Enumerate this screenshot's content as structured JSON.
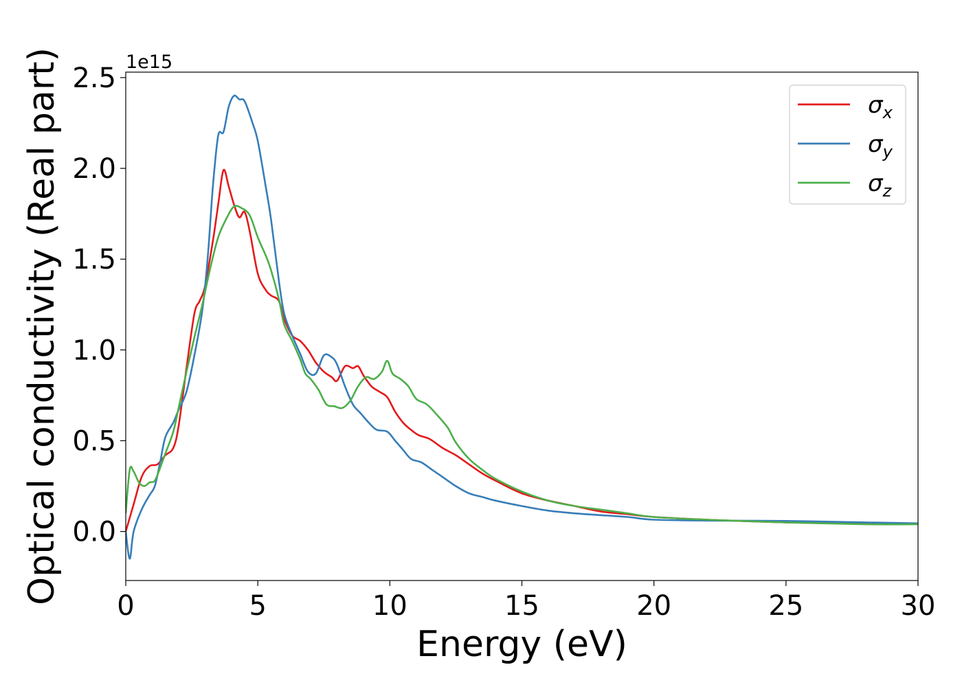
{
  "chart_data": {
    "type": "line",
    "title": "",
    "xlabel": "Energy (eV)",
    "ylabel": "Optical conductivity (Real part)",
    "y_offset_label": "1e15",
    "xlim": [
      0,
      30
    ],
    "ylim": [
      -0.27,
      2.53
    ],
    "x_ticks": [
      0,
      5,
      10,
      15,
      20,
      25,
      30
    ],
    "y_ticks": [
      0.0,
      0.5,
      1.0,
      1.5,
      2.0,
      2.5
    ],
    "x_tick_labels": [
      "0",
      "5",
      "10",
      "15",
      "20",
      "25",
      "30"
    ],
    "y_tick_labels": [
      "0.0",
      "0.5",
      "1.0",
      "1.5",
      "2.0",
      "2.5"
    ],
    "grid": false,
    "legend_position": "top-right",
    "series": [
      {
        "name": "σx",
        "color": "#e41a1c",
        "points": [
          [
            0,
            0.0
          ],
          [
            0.3,
            0.15
          ],
          [
            0.6,
            0.3
          ],
          [
            0.9,
            0.36
          ],
          [
            1.2,
            0.37
          ],
          [
            1.5,
            0.42
          ],
          [
            1.8,
            0.46
          ],
          [
            2.0,
            0.58
          ],
          [
            2.3,
            0.9
          ],
          [
            2.6,
            1.2
          ],
          [
            2.8,
            1.27
          ],
          [
            3.0,
            1.35
          ],
          [
            3.3,
            1.6
          ],
          [
            3.5,
            1.8
          ],
          [
            3.7,
            1.99
          ],
          [
            3.9,
            1.9
          ],
          [
            4.1,
            1.8
          ],
          [
            4.3,
            1.73
          ],
          [
            4.5,
            1.76
          ],
          [
            4.7,
            1.65
          ],
          [
            5.0,
            1.42
          ],
          [
            5.3,
            1.33
          ],
          [
            5.5,
            1.3
          ],
          [
            5.8,
            1.27
          ],
          [
            6.0,
            1.17
          ],
          [
            6.3,
            1.08
          ],
          [
            6.6,
            1.05
          ],
          [
            6.9,
            1.0
          ],
          [
            7.2,
            0.93
          ],
          [
            7.5,
            0.88
          ],
          [
            7.8,
            0.85
          ],
          [
            8.0,
            0.83
          ],
          [
            8.3,
            0.91
          ],
          [
            8.6,
            0.9
          ],
          [
            8.8,
            0.91
          ],
          [
            9.0,
            0.86
          ],
          [
            9.3,
            0.8
          ],
          [
            9.6,
            0.77
          ],
          [
            9.9,
            0.74
          ],
          [
            10.2,
            0.66
          ],
          [
            10.5,
            0.6
          ],
          [
            10.8,
            0.56
          ],
          [
            11.1,
            0.53
          ],
          [
            11.5,
            0.51
          ],
          [
            12.0,
            0.46
          ],
          [
            12.5,
            0.42
          ],
          [
            13.0,
            0.37
          ],
          [
            13.5,
            0.32
          ],
          [
            14.0,
            0.28
          ],
          [
            15.0,
            0.21
          ],
          [
            16.0,
            0.17
          ],
          [
            17.0,
            0.14
          ],
          [
            18.0,
            0.11
          ],
          [
            19.0,
            0.095
          ],
          [
            20.0,
            0.08
          ],
          [
            22.0,
            0.065
          ],
          [
            25.0,
            0.05
          ],
          [
            28.0,
            0.045
          ],
          [
            30.0,
            0.04
          ]
        ]
      },
      {
        "name": "σy",
        "color": "#377eb8",
        "points": [
          [
            0,
            0.0
          ],
          [
            0.15,
            -0.15
          ],
          [
            0.3,
            0.0
          ],
          [
            0.6,
            0.12
          ],
          [
            0.9,
            0.2
          ],
          [
            1.1,
            0.25
          ],
          [
            1.3,
            0.38
          ],
          [
            1.5,
            0.52
          ],
          [
            1.8,
            0.6
          ],
          [
            2.0,
            0.67
          ],
          [
            2.3,
            0.77
          ],
          [
            2.6,
            0.97
          ],
          [
            2.9,
            1.22
          ],
          [
            3.1,
            1.5
          ],
          [
            3.3,
            1.9
          ],
          [
            3.5,
            2.18
          ],
          [
            3.7,
            2.2
          ],
          [
            3.9,
            2.34
          ],
          [
            4.1,
            2.4
          ],
          [
            4.3,
            2.38
          ],
          [
            4.5,
            2.37
          ],
          [
            4.8,
            2.25
          ],
          [
            5.0,
            2.15
          ],
          [
            5.3,
            1.9
          ],
          [
            5.5,
            1.72
          ],
          [
            5.8,
            1.38
          ],
          [
            6.0,
            1.2
          ],
          [
            6.3,
            1.08
          ],
          [
            6.6,
            0.98
          ],
          [
            6.9,
            0.88
          ],
          [
            7.2,
            0.87
          ],
          [
            7.5,
            0.97
          ],
          [
            7.8,
            0.96
          ],
          [
            8.0,
            0.92
          ],
          [
            8.3,
            0.8
          ],
          [
            8.6,
            0.7
          ],
          [
            8.9,
            0.65
          ],
          [
            9.2,
            0.6
          ],
          [
            9.5,
            0.56
          ],
          [
            9.9,
            0.55
          ],
          [
            10.2,
            0.5
          ],
          [
            10.5,
            0.45
          ],
          [
            10.8,
            0.4
          ],
          [
            11.2,
            0.38
          ],
          [
            11.6,
            0.34
          ],
          [
            12.0,
            0.3
          ],
          [
            12.5,
            0.25
          ],
          [
            13.0,
            0.21
          ],
          [
            13.5,
            0.19
          ],
          [
            14.0,
            0.17
          ],
          [
            15.0,
            0.14
          ],
          [
            16.0,
            0.115
          ],
          [
            17.0,
            0.1
          ],
          [
            18.0,
            0.09
          ],
          [
            19.0,
            0.08
          ],
          [
            20.0,
            0.065
          ],
          [
            22.0,
            0.06
          ],
          [
            25.0,
            0.058
          ],
          [
            28.0,
            0.05
          ],
          [
            30.0,
            0.045
          ]
        ]
      },
      {
        "name": "σz",
        "color": "#4daf4a",
        "points": [
          [
            0,
            0.1
          ],
          [
            0.15,
            0.34
          ],
          [
            0.3,
            0.33
          ],
          [
            0.5,
            0.27
          ],
          [
            0.7,
            0.25
          ],
          [
            0.9,
            0.27
          ],
          [
            1.1,
            0.28
          ],
          [
            1.3,
            0.35
          ],
          [
            1.5,
            0.43
          ],
          [
            1.8,
            0.55
          ],
          [
            2.0,
            0.68
          ],
          [
            2.3,
            0.88
          ],
          [
            2.6,
            1.07
          ],
          [
            2.9,
            1.25
          ],
          [
            3.2,
            1.45
          ],
          [
            3.5,
            1.62
          ],
          [
            3.8,
            1.72
          ],
          [
            4.1,
            1.79
          ],
          [
            4.4,
            1.78
          ],
          [
            4.7,
            1.74
          ],
          [
            5.0,
            1.62
          ],
          [
            5.3,
            1.52
          ],
          [
            5.5,
            1.44
          ],
          [
            5.8,
            1.28
          ],
          [
            6.0,
            1.14
          ],
          [
            6.3,
            1.05
          ],
          [
            6.6,
            0.95
          ],
          [
            6.8,
            0.87
          ],
          [
            7.0,
            0.84
          ],
          [
            7.3,
            0.78
          ],
          [
            7.6,
            0.7
          ],
          [
            7.9,
            0.69
          ],
          [
            8.2,
            0.68
          ],
          [
            8.5,
            0.72
          ],
          [
            8.8,
            0.8
          ],
          [
            9.1,
            0.85
          ],
          [
            9.4,
            0.84
          ],
          [
            9.7,
            0.88
          ],
          [
            9.9,
            0.94
          ],
          [
            10.1,
            0.87
          ],
          [
            10.4,
            0.84
          ],
          [
            10.7,
            0.8
          ],
          [
            11.0,
            0.73
          ],
          [
            11.4,
            0.7
          ],
          [
            11.8,
            0.64
          ],
          [
            12.2,
            0.57
          ],
          [
            12.5,
            0.49
          ],
          [
            13.0,
            0.4
          ],
          [
            13.5,
            0.34
          ],
          [
            14.0,
            0.29
          ],
          [
            15.0,
            0.22
          ],
          [
            16.0,
            0.17
          ],
          [
            17.0,
            0.14
          ],
          [
            18.0,
            0.12
          ],
          [
            19.0,
            0.1
          ],
          [
            20.0,
            0.08
          ],
          [
            22.0,
            0.065
          ],
          [
            25.0,
            0.05
          ],
          [
            28.0,
            0.04
          ],
          [
            30.0,
            0.04
          ]
        ]
      }
    ]
  }
}
